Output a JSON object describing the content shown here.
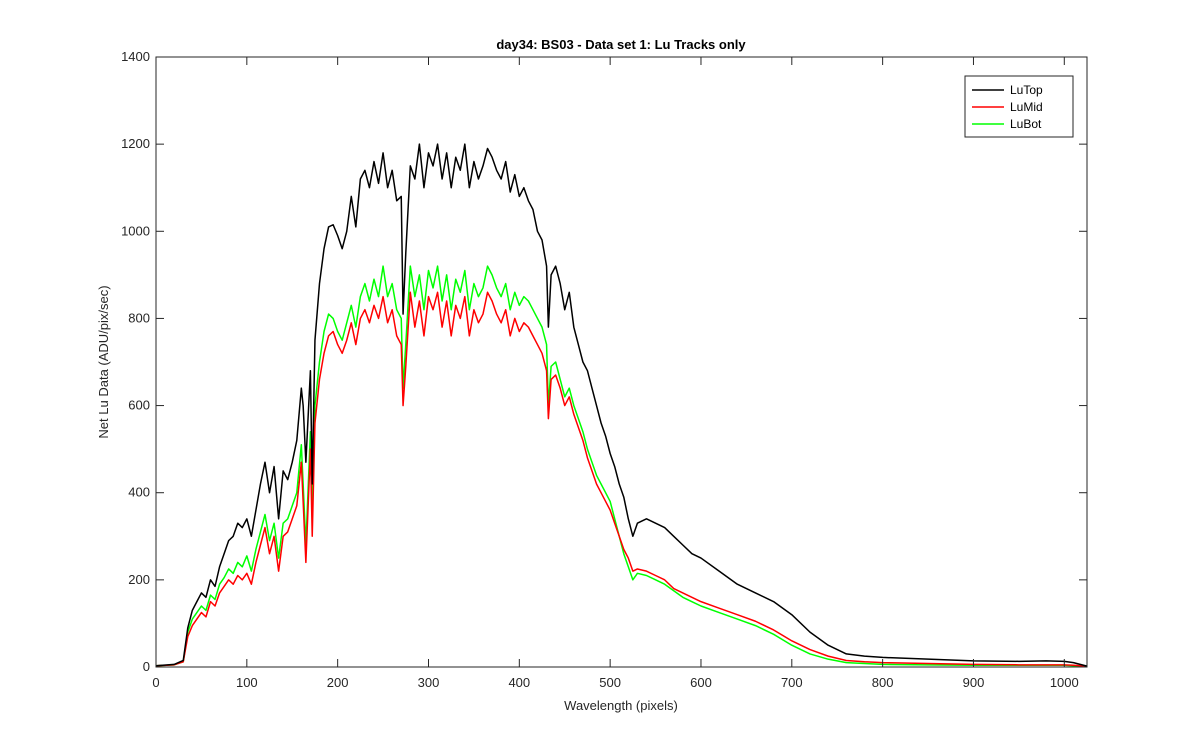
{
  "chart_data": {
    "type": "line",
    "title": "day34: BS03 - Data set 1: Lu Tracks only",
    "xlabel": "Wavelength (pixels)",
    "ylabel": "Net Lu Data (ADU/pix/sec)",
    "xlim": [
      0,
      1025
    ],
    "ylim": [
      0,
      1400
    ],
    "xticks": [
      0,
      100,
      200,
      300,
      400,
      500,
      600,
      700,
      800,
      900,
      1000
    ],
    "yticks": [
      0,
      200,
      400,
      600,
      800,
      1000,
      1200,
      1400
    ],
    "grid": false,
    "legend_position": "top-right",
    "series": [
      {
        "name": "LuTop",
        "color": "#000000",
        "x": [
          0,
          20,
          30,
          35,
          40,
          45,
          50,
          55,
          60,
          65,
          70,
          75,
          80,
          85,
          90,
          95,
          100,
          105,
          110,
          115,
          120,
          125,
          130,
          135,
          140,
          145,
          150,
          155,
          160,
          162,
          165,
          170,
          172,
          175,
          180,
          185,
          190,
          195,
          200,
          205,
          210,
          215,
          220,
          225,
          230,
          235,
          240,
          245,
          250,
          255,
          260,
          265,
          270,
          272,
          275,
          280,
          285,
          290,
          295,
          300,
          305,
          310,
          315,
          320,
          325,
          330,
          335,
          340,
          345,
          350,
          355,
          360,
          365,
          370,
          375,
          380,
          385,
          390,
          395,
          400,
          405,
          410,
          415,
          420,
          425,
          430,
          432,
          435,
          440,
          445,
          450,
          455,
          460,
          465,
          470,
          475,
          480,
          485,
          490,
          495,
          500,
          505,
          510,
          515,
          520,
          525,
          530,
          540,
          550,
          560,
          570,
          580,
          590,
          600,
          620,
          640,
          660,
          680,
          700,
          720,
          740,
          760,
          780,
          800,
          850,
          900,
          950,
          980,
          1000,
          1010,
          1025
        ],
        "y": [
          3,
          6,
          15,
          90,
          130,
          150,
          170,
          160,
          200,
          185,
          230,
          260,
          290,
          300,
          330,
          320,
          340,
          300,
          360,
          420,
          470,
          400,
          460,
          340,
          450,
          430,
          470,
          520,
          640,
          600,
          470,
          680,
          420,
          750,
          880,
          960,
          1010,
          1015,
          990,
          960,
          1000,
          1080,
          1010,
          1120,
          1140,
          1100,
          1160,
          1110,
          1180,
          1100,
          1140,
          1070,
          1080,
          810,
          950,
          1150,
          1120,
          1200,
          1100,
          1180,
          1150,
          1200,
          1120,
          1180,
          1100,
          1170,
          1140,
          1200,
          1100,
          1160,
          1120,
          1150,
          1190,
          1170,
          1140,
          1120,
          1160,
          1090,
          1130,
          1080,
          1100,
          1070,
          1050,
          1000,
          980,
          920,
          780,
          900,
          920,
          880,
          820,
          860,
          780,
          740,
          700,
          680,
          640,
          600,
          560,
          530,
          490,
          460,
          420,
          390,
          340,
          300,
          330,
          340,
          330,
          320,
          300,
          280,
          260,
          250,
          220,
          190,
          170,
          150,
          120,
          80,
          50,
          30,
          25,
          22,
          18,
          14,
          13,
          14,
          13,
          10,
          2
        ]
      },
      {
        "name": "LuMid",
        "color": "#ff0000",
        "x": [
          0,
          20,
          30,
          35,
          40,
          45,
          50,
          55,
          60,
          65,
          70,
          75,
          80,
          85,
          90,
          95,
          100,
          105,
          110,
          115,
          120,
          125,
          130,
          135,
          140,
          145,
          150,
          155,
          160,
          162,
          165,
          170,
          172,
          175,
          180,
          185,
          190,
          195,
          200,
          205,
          210,
          215,
          220,
          225,
          230,
          235,
          240,
          245,
          250,
          255,
          260,
          265,
          270,
          272,
          275,
          280,
          285,
          290,
          295,
          300,
          305,
          310,
          315,
          320,
          325,
          330,
          335,
          340,
          345,
          350,
          355,
          360,
          365,
          370,
          375,
          380,
          385,
          390,
          395,
          400,
          405,
          410,
          415,
          420,
          425,
          430,
          432,
          435,
          440,
          445,
          450,
          455,
          460,
          465,
          470,
          475,
          480,
          485,
          490,
          495,
          500,
          505,
          510,
          515,
          520,
          525,
          530,
          540,
          550,
          560,
          570,
          580,
          590,
          600,
          620,
          640,
          660,
          680,
          700,
          720,
          740,
          760,
          780,
          800,
          850,
          900,
          950,
          980,
          1000,
          1010,
          1025
        ],
        "y": [
          3,
          5,
          12,
          70,
          95,
          110,
          125,
          115,
          150,
          140,
          170,
          185,
          200,
          190,
          210,
          200,
          215,
          190,
          240,
          280,
          320,
          260,
          300,
          220,
          300,
          310,
          340,
          370,
          470,
          380,
          240,
          500,
          300,
          560,
          660,
          720,
          760,
          770,
          740,
          720,
          750,
          790,
          740,
          800,
          820,
          790,
          830,
          800,
          850,
          790,
          820,
          760,
          740,
          600,
          690,
          860,
          780,
          840,
          760,
          850,
          820,
          860,
          780,
          840,
          760,
          830,
          800,
          850,
          760,
          820,
          790,
          810,
          860,
          840,
          810,
          790,
          820,
          760,
          800,
          770,
          790,
          780,
          760,
          740,
          720,
          680,
          570,
          660,
          670,
          640,
          600,
          620,
          580,
          550,
          520,
          480,
          450,
          420,
          400,
          380,
          360,
          330,
          300,
          270,
          250,
          220,
          225,
          220,
          210,
          200,
          180,
          170,
          160,
          150,
          135,
          120,
          105,
          85,
          60,
          40,
          25,
          15,
          12,
          10,
          8,
          6,
          5,
          5,
          5,
          4,
          2
        ]
      },
      {
        "name": "LuBot",
        "color": "#00ff00",
        "x": [
          0,
          20,
          30,
          35,
          40,
          45,
          50,
          55,
          60,
          65,
          70,
          75,
          80,
          85,
          90,
          95,
          100,
          105,
          110,
          115,
          120,
          125,
          130,
          135,
          140,
          145,
          150,
          155,
          160,
          162,
          165,
          170,
          172,
          175,
          180,
          185,
          190,
          195,
          200,
          205,
          210,
          215,
          220,
          225,
          230,
          235,
          240,
          245,
          250,
          255,
          260,
          265,
          270,
          272,
          275,
          280,
          285,
          290,
          295,
          300,
          305,
          310,
          315,
          320,
          325,
          330,
          335,
          340,
          345,
          350,
          355,
          360,
          365,
          370,
          375,
          380,
          385,
          390,
          395,
          400,
          405,
          410,
          415,
          420,
          425,
          430,
          432,
          435,
          440,
          445,
          450,
          455,
          460,
          465,
          470,
          475,
          480,
          485,
          490,
          495,
          500,
          505,
          510,
          515,
          520,
          525,
          530,
          540,
          550,
          560,
          570,
          580,
          590,
          600,
          620,
          640,
          660,
          680,
          700,
          720,
          740,
          760,
          780,
          800,
          850,
          900,
          950,
          980,
          1000,
          1010,
          1025
        ],
        "y": [
          3,
          5,
          12,
          80,
          110,
          125,
          140,
          130,
          165,
          155,
          190,
          205,
          225,
          215,
          240,
          230,
          255,
          220,
          270,
          310,
          350,
          290,
          330,
          250,
          330,
          340,
          370,
          400,
          510,
          420,
          280,
          540,
          340,
          600,
          700,
          770,
          810,
          800,
          770,
          750,
          790,
          830,
          780,
          850,
          880,
          840,
          890,
          850,
          920,
          850,
          880,
          820,
          800,
          640,
          740,
          920,
          850,
          900,
          820,
          910,
          870,
          920,
          840,
          900,
          820,
          890,
          860,
          910,
          820,
          880,
          850,
          870,
          920,
          900,
          870,
          850,
          880,
          820,
          860,
          830,
          850,
          840,
          820,
          800,
          780,
          740,
          600,
          690,
          700,
          660,
          620,
          640,
          600,
          570,
          540,
          500,
          470,
          440,
          420,
          400,
          380,
          340,
          300,
          260,
          230,
          200,
          215,
          210,
          200,
          190,
          175,
          160,
          150,
          140,
          125,
          110,
          95,
          75,
          50,
          30,
          18,
          10,
          8,
          6,
          5,
          4,
          4,
          4,
          4,
          3,
          2
        ]
      }
    ]
  }
}
